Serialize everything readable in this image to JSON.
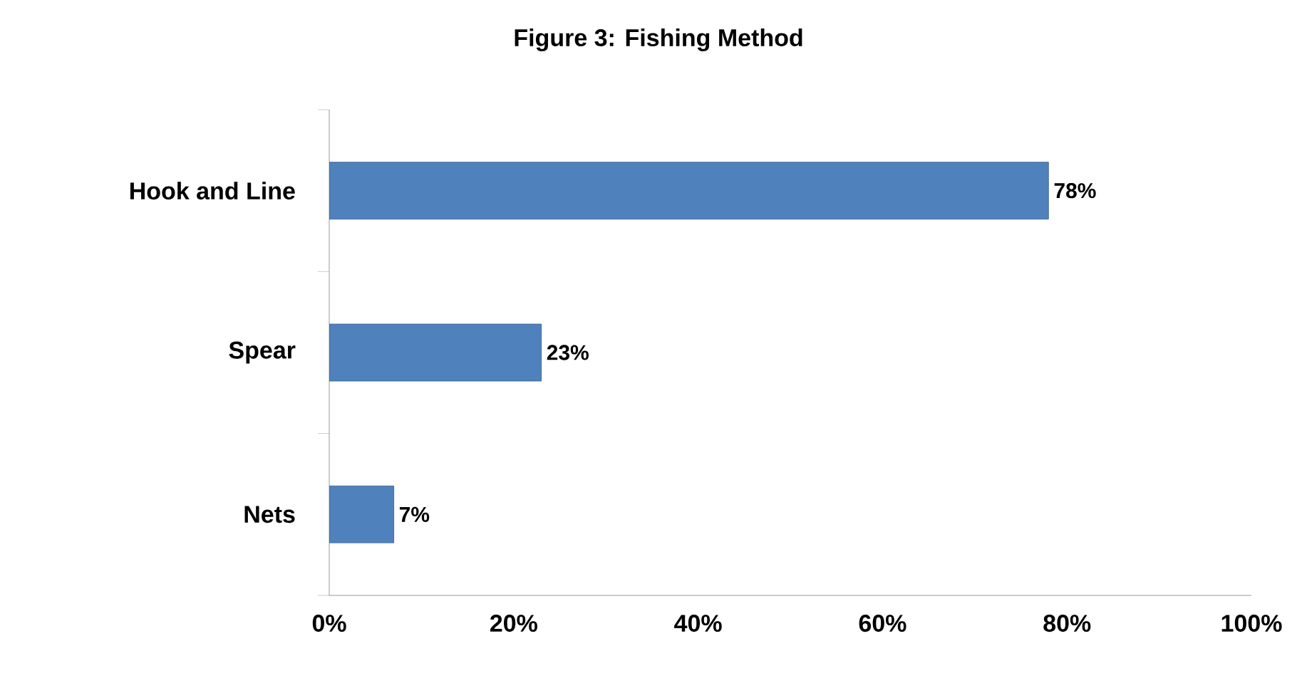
{
  "chart_data": {
    "type": "bar",
    "orientation": "horizontal",
    "title": "Figure 3:  Fishing Method",
    "categories": [
      "Hook and Line",
      "Spear",
      "Nets"
    ],
    "values": [
      78,
      23,
      7
    ],
    "value_labels": [
      "78%",
      "23%",
      "7%"
    ],
    "color": "#4f81bd",
    "xlim": [
      0,
      100
    ],
    "xticks": [
      {
        "value": 0,
        "label": "0%"
      },
      {
        "value": 20,
        "label": "20%"
      },
      {
        "value": 40,
        "label": "40%"
      },
      {
        "value": 60,
        "label": "60%"
      },
      {
        "value": 80,
        "label": "80%"
      },
      {
        "value": 100,
        "label": "100%"
      }
    ],
    "grid": false
  }
}
